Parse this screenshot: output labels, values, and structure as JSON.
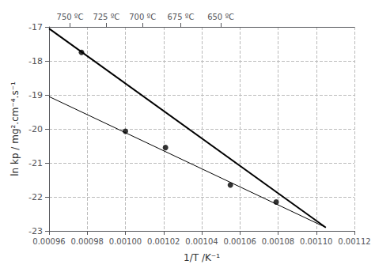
{
  "chart_data": {
    "type": "scatter",
    "xlabel": "1/T /K⁻¹",
    "ylabel": "ln kp / mg².cm⁻⁴.s⁻¹",
    "xlim": [
      0.00096,
      0.00112
    ],
    "xticks": [
      {
        "value": 0.00096,
        "label": "0.00096"
      },
      {
        "value": 0.00098,
        "label": "0.00098"
      },
      {
        "value": 0.001,
        "label": "0.00100"
      },
      {
        "value": 0.00102,
        "label": "0.00102"
      },
      {
        "value": 0.00104,
        "label": "0.00104"
      },
      {
        "value": 0.00106,
        "label": "0.00106"
      },
      {
        "value": 0.00108,
        "label": "0.00108"
      },
      {
        "value": 0.0011,
        "label": "0.00110"
      },
      {
        "value": 0.00112,
        "label": "0.00112"
      }
    ],
    "x2lim": [
      0.00096,
      0.00112
    ],
    "x2ticks": [
      {
        "value": 0.000971,
        "label": "750 ºC"
      },
      {
        "value": 0.00099,
        "label": "725 ºC"
      },
      {
        "value": 0.001009,
        "label": "700 ºC"
      },
      {
        "value": 0.001029,
        "label": "675 ºC"
      },
      {
        "value": 0.00105,
        "label": "650 ºC"
      }
    ],
    "ylim": [
      -23,
      -17
    ],
    "yticks": [
      -23,
      -22,
      -21,
      -20,
      -19,
      -18,
      -17
    ],
    "grid": true,
    "series": [
      {
        "type": "line",
        "color": "#000000",
        "x": [
          0.00096,
          0.001105
        ],
        "values": [
          -17.05,
          -22.9
        ]
      },
      {
        "type": "line",
        "color": "#000000",
        "x": [
          0.00096,
          0.001105
        ],
        "values": [
          -19.05,
          -22.9
        ]
      },
      {
        "type": "scatter",
        "color": "#000000",
        "x": [
          0.000977,
          0.001,
          0.001021,
          0.001055,
          0.001079
        ],
        "values": [
          -17.75,
          -20.07,
          -20.55,
          -21.65,
          -22.15
        ]
      }
    ]
  }
}
